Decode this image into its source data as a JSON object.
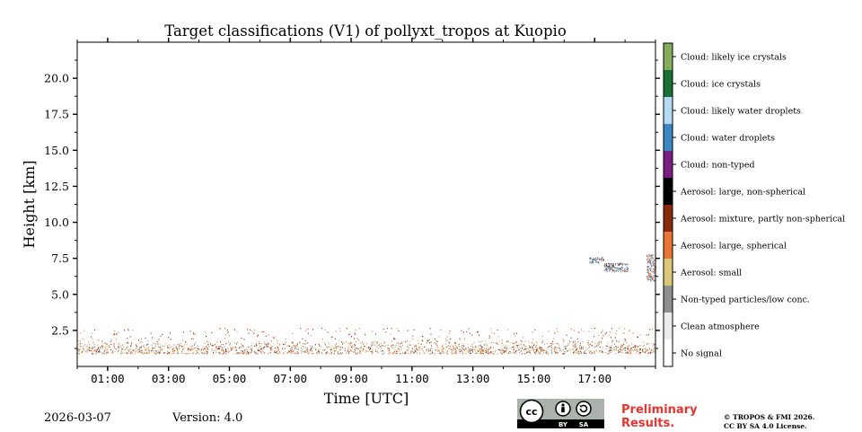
{
  "title": "Target classifications (V1) of pollyxt_tropos at Kuopio",
  "footer": {
    "date": "2026-03-07",
    "version": "Version: 4.0",
    "preliminary_line1": "Preliminary",
    "preliminary_line2": "Results.",
    "copyright_line1": "© TROPOS & FMI 2026.",
    "copyright_line2": "CC BY SA 4.0 License."
  },
  "license_badge": {
    "cc": "cc",
    "by": "BY",
    "sa": "SA"
  },
  "chart_data": {
    "type": "heatmap",
    "title": "Target classifications (V1) of pollyxt_tropos at Kuopio",
    "xlabel": "Time [UTC]",
    "ylabel": "Height [km]",
    "xlim_hours": [
      0,
      19
    ],
    "ylim_km": [
      0,
      22.5
    ],
    "x_ticks": [
      {
        "value": 1,
        "label": "01:00"
      },
      {
        "value": 3,
        "label": "03:00"
      },
      {
        "value": 5,
        "label": "05:00"
      },
      {
        "value": 7,
        "label": "07:00"
      },
      {
        "value": 9,
        "label": "09:00"
      },
      {
        "value": 11,
        "label": "11:00"
      },
      {
        "value": 13,
        "label": "13:00"
      },
      {
        "value": 15,
        "label": "15:00"
      },
      {
        "value": 17,
        "label": "17:00"
      }
    ],
    "y_ticks": [
      {
        "value": 2.5,
        "label": "2.5"
      },
      {
        "value": 5,
        "label": "5.0"
      },
      {
        "value": 7.5,
        "label": "7.5"
      },
      {
        "value": 10,
        "label": "10.0"
      },
      {
        "value": 12.5,
        "label": "12.5"
      },
      {
        "value": 15,
        "label": "15.0"
      },
      {
        "value": 17.5,
        "label": "17.5"
      },
      {
        "value": 20,
        "label": "20.0"
      }
    ],
    "classes": [
      {
        "label": "No signal",
        "color": "#ffffff"
      },
      {
        "label": "Clean atmosphere",
        "color": "#ececec"
      },
      {
        "label": "Non-typed particles/low conc.",
        "color": "#8f8f8f"
      },
      {
        "label": "Aerosol: small",
        "color": "#dcc67a"
      },
      {
        "label": "Aerosol: large, spherical",
        "color": "#ea7535"
      },
      {
        "label": "Aerosol: mixture, partly non-spherical",
        "color": "#8a2a0c"
      },
      {
        "label": "Aerosol: large, non-spherical",
        "color": "#000000"
      },
      {
        "label": "Cloud: non-typed",
        "color": "#7b1e83"
      },
      {
        "label": "Cloud: water droplets",
        "color": "#3d86c4"
      },
      {
        "label": "Cloud: likely water droplets",
        "color": "#b4d9f2"
      },
      {
        "label": "Cloud: ice crystals",
        "color": "#1a7036"
      },
      {
        "label": "Cloud: likely ice crystals",
        "color": "#86ab5c"
      }
    ],
    "features": [
      {
        "name": "boundary-layer-aerosol",
        "t_start": 0,
        "t_end": 19,
        "h_min": 0.9,
        "h_max": 1.9,
        "classes": [
          2,
          3,
          4,
          5
        ],
        "note": "sparse speckled returns"
      },
      {
        "name": "aerosol-speckles-upper",
        "t_start": 0,
        "t_end": 19,
        "h_min": 1.9,
        "h_max": 2.7,
        "classes": [
          4,
          5
        ],
        "note": "occasional"
      },
      {
        "name": "mid-level-cloud",
        "t_start": 16.8,
        "t_end": 17.3,
        "h_min": 7.2,
        "h_max": 7.6,
        "classes": [
          8,
          9,
          5
        ]
      },
      {
        "name": "mid-level-cloud-tail",
        "t_start": 17.3,
        "t_end": 18.1,
        "h_min": 6.6,
        "h_max": 7.2,
        "classes": [
          8,
          5,
          2
        ]
      },
      {
        "name": "cloud-right-edge",
        "t_start": 18.7,
        "t_end": 19,
        "h_min": 5.9,
        "h_max": 7.8,
        "classes": [
          8,
          4
        ]
      }
    ]
  }
}
